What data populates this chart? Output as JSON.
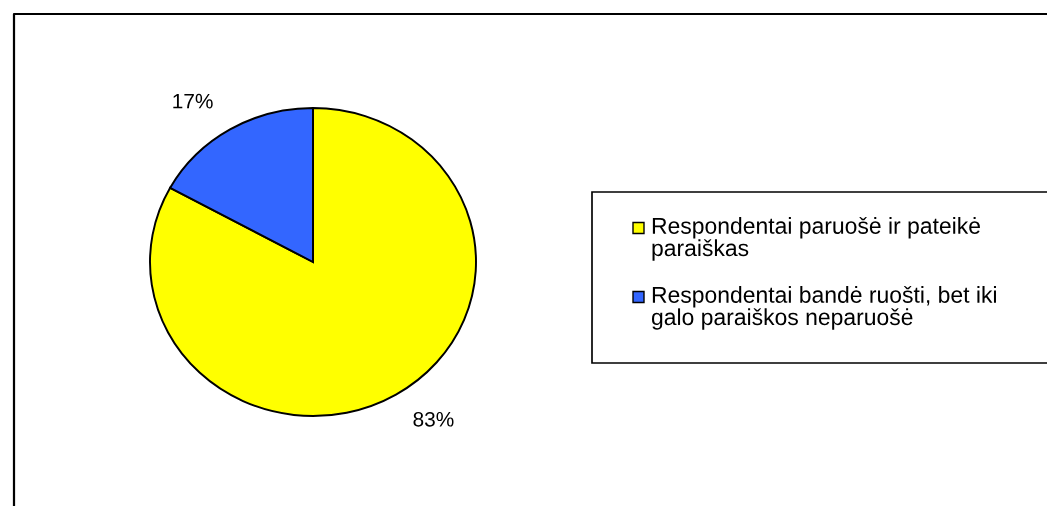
{
  "chart_data": {
    "type": "pie",
    "categories": [
      "Respondentai paruošė ir pateikė paraiškas",
      "Respondentai bandė ruošti, bet iki galo paraiškos neparuošė"
    ],
    "values": [
      83,
      17
    ],
    "colors": [
      "#ffff00",
      "#3366ff"
    ],
    "value_labels": [
      "83%",
      "17%"
    ],
    "legend": "right"
  }
}
